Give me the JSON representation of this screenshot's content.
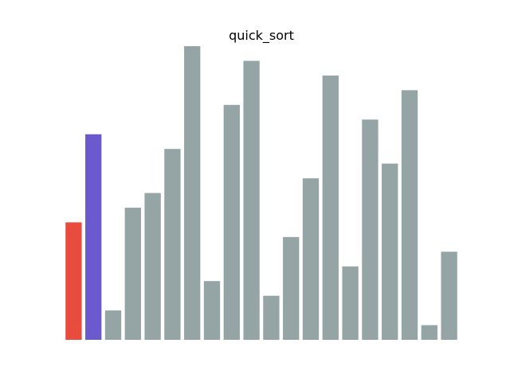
{
  "chart_data": {
    "type": "bar",
    "title": "quick_sort",
    "xlabel": "",
    "ylabel": "",
    "axes_visible": false,
    "grid": false,
    "ylim": [
      0,
      20
    ],
    "values": [
      8,
      14,
      2,
      9,
      10,
      13,
      20,
      4,
      16,
      19,
      3,
      7,
      11,
      18,
      5,
      15,
      12,
      17,
      1,
      6
    ],
    "highlights": [
      {
        "index": 0,
        "color": "#e74c3c"
      },
      {
        "index": 1,
        "color": "#6a5acd"
      }
    ],
    "default_color": "#95a5a6"
  }
}
